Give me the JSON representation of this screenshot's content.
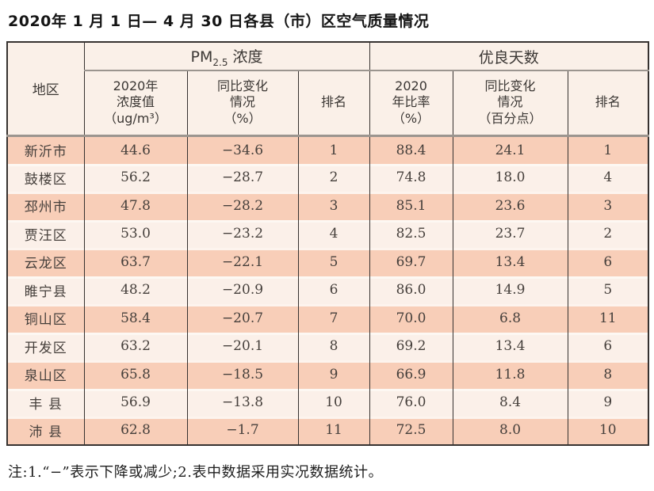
{
  "title": "2020年 1 月 1 日— 4 月 30 日各县（市）区空气质量情况",
  "table": {
    "region_header": "地区",
    "groups": {
      "pm_prefix": "PM",
      "pm_sub": "2.5",
      "pm_suffix": " 浓度",
      "good": "优良天数"
    },
    "subheaders": [
      "2020年\n浓度值\n（ug/m³）",
      "同比变化\n情况\n（%）",
      "排名",
      "2020\n年比率\n（%）",
      "同比变化\n情况\n（百分点）",
      "排名"
    ],
    "rows": [
      {
        "region": "新沂市",
        "cells": [
          "44.6",
          "−34.6",
          "1",
          "88.4",
          "24.1",
          "1"
        ]
      },
      {
        "region": "鼓楼区",
        "cells": [
          "56.2",
          "−28.7",
          "2",
          "74.8",
          "18.0",
          "4"
        ]
      },
      {
        "region": "邳州市",
        "cells": [
          "47.8",
          "−28.2",
          "3",
          "85.1",
          "23.6",
          "3"
        ]
      },
      {
        "region": "贾汪区",
        "cells": [
          "53.0",
          "−23.2",
          "4",
          "82.5",
          "23.7",
          "2"
        ]
      },
      {
        "region": "云龙区",
        "cells": [
          "63.7",
          "−22.1",
          "5",
          "69.7",
          "13.4",
          "6"
        ]
      },
      {
        "region": "睢宁县",
        "cells": [
          "48.2",
          "−20.9",
          "6",
          "86.0",
          "14.9",
          "5"
        ]
      },
      {
        "region": "铜山区",
        "cells": [
          "58.4",
          "−20.7",
          "7",
          "70.0",
          "6.8",
          "11"
        ]
      },
      {
        "region": "开发区",
        "cells": [
          "63.2",
          "−20.1",
          "8",
          "69.2",
          "13.4",
          "6"
        ]
      },
      {
        "region": "泉山区",
        "cells": [
          "65.8",
          "−18.5",
          "9",
          "66.9",
          "11.8",
          "8"
        ]
      },
      {
        "region": "丰 县",
        "cells": [
          "56.9",
          "−13.8",
          "10",
          "76.0",
          "8.4",
          "9"
        ]
      },
      {
        "region": "沛 县",
        "cells": [
          "62.8",
          "−1.7",
          "11",
          "72.5",
          "8.0",
          "10"
        ]
      }
    ]
  },
  "note": "注:1.“−”表示下降或减少;2.表中数据采用实况数据统计。",
  "colors": {
    "row_salmon": "#f8ceb8",
    "row_cream": "#fbf0e9",
    "header_bg": "#faf0e8",
    "border_dark": "#363230",
    "separator_gray": "#9b958f"
  }
}
